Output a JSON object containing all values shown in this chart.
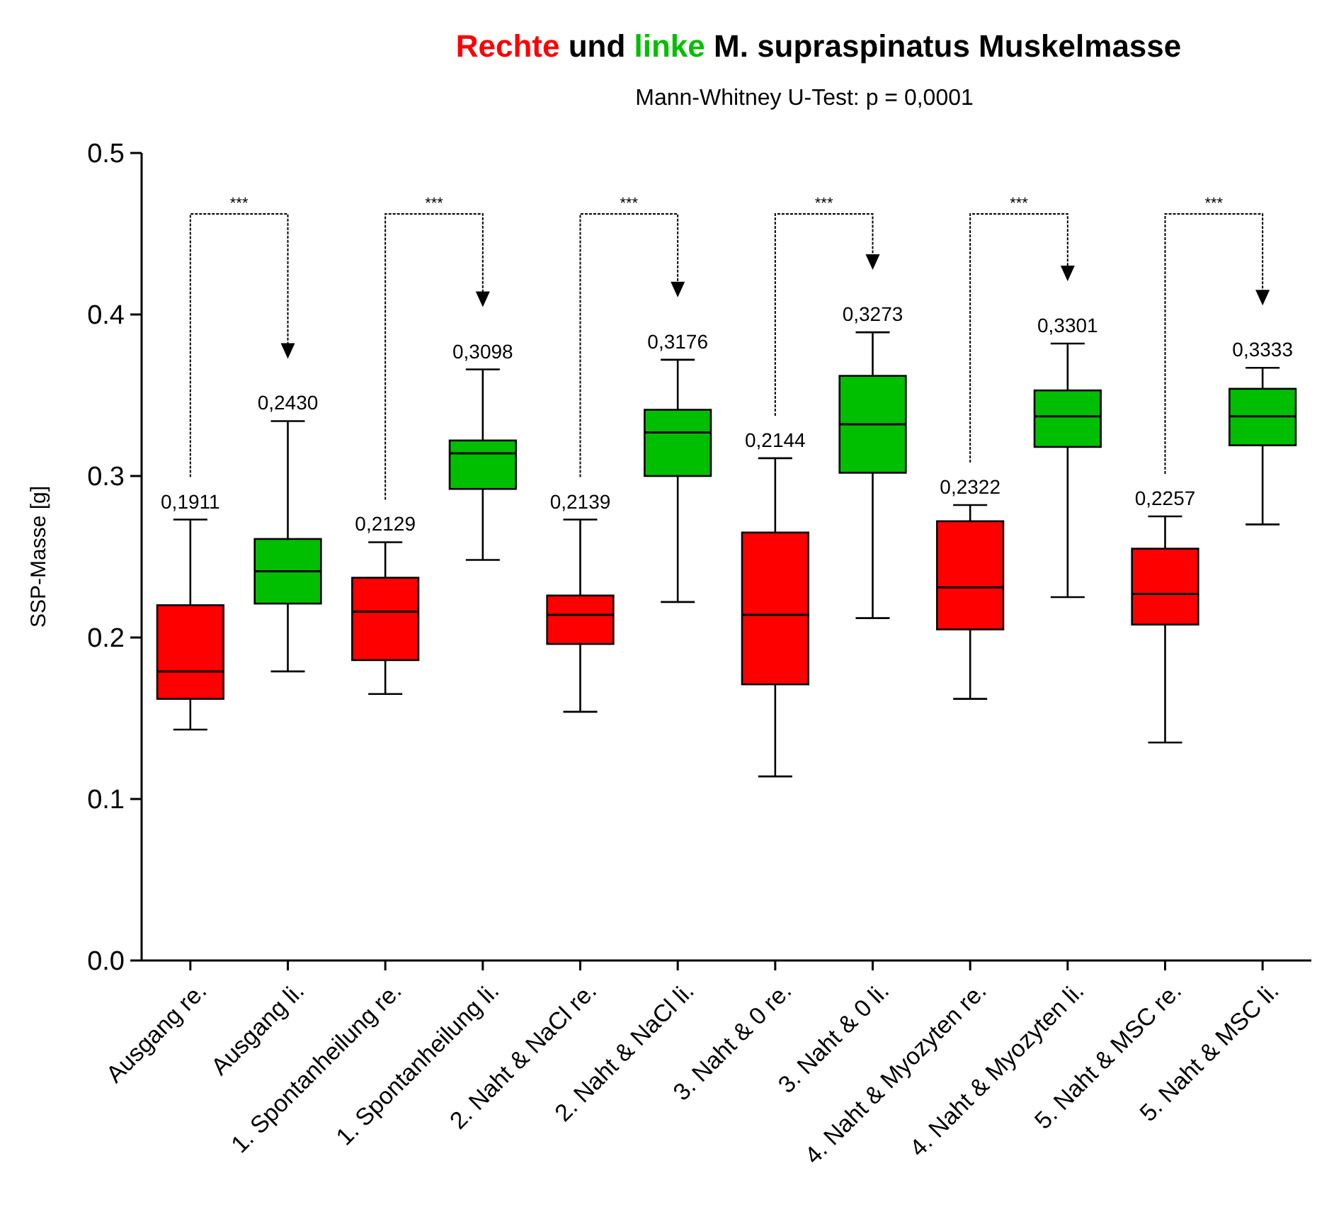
{
  "chart_data": {
    "type": "box",
    "title": "Rechte und linke M. supraspinatus Muskelmasse",
    "subtitle": "Mann-Whitney  U-Test: p = 0,0001",
    "ylabel": "SSP-Masse [g]",
    "categories": [
      "Ausgang re.",
      "Ausgang li.",
      "1. Spontanheilung re.",
      "1. Spontanheilung li.",
      "2. Naht & NaCl re.",
      "2. Naht & NaCl li.",
      "3. Naht & 0 re.",
      "3. Naht & 0 li.",
      "4. Naht & Myozyten re.",
      "4. Naht & Myozyten li.",
      "5. Naht & MSC re.",
      "5. Naht & MSC li."
    ],
    "colors": [
      "#ff0000",
      "#00bf00",
      "#ff0000",
      "#00bf00",
      "#ff0000",
      "#00bf00",
      "#ff0000",
      "#00bf00",
      "#ff0000",
      "#00bf00",
      "#ff0000",
      "#00bf00"
    ],
    "boxes": [
      {
        "low": 0.143,
        "q1": 0.162,
        "median": 0.179,
        "q3": 0.22,
        "high": 0.273
      },
      {
        "low": 0.179,
        "q1": 0.221,
        "median": 0.241,
        "q3": 0.261,
        "high": 0.334
      },
      {
        "low": 0.165,
        "q1": 0.186,
        "median": 0.216,
        "q3": 0.237,
        "high": 0.259
      },
      {
        "low": 0.248,
        "q1": 0.292,
        "median": 0.314,
        "q3": 0.322,
        "high": 0.366
      },
      {
        "low": 0.154,
        "q1": 0.196,
        "median": 0.214,
        "q3": 0.226,
        "high": 0.273
      },
      {
        "low": 0.222,
        "q1": 0.3,
        "median": 0.327,
        "q3": 0.341,
        "high": 0.372
      },
      {
        "low": 0.114,
        "q1": 0.171,
        "median": 0.214,
        "q3": 0.265,
        "high": 0.311
      },
      {
        "low": 0.212,
        "q1": 0.302,
        "median": 0.332,
        "q3": 0.362,
        "high": 0.389
      },
      {
        "low": 0.162,
        "q1": 0.205,
        "median": 0.231,
        "q3": 0.272,
        "high": 0.282
      },
      {
        "low": 0.225,
        "q1": 0.318,
        "median": 0.337,
        "q3": 0.353,
        "high": 0.382
      },
      {
        "low": 0.135,
        "q1": 0.208,
        "median": 0.227,
        "q3": 0.255,
        "high": 0.275
      },
      {
        "low": 0.27,
        "q1": 0.319,
        "median": 0.337,
        "q3": 0.354,
        "high": 0.367
      }
    ],
    "value_labels": [
      "0,1911",
      "0,2430",
      "0,2129",
      "0,3098",
      "0,2139",
      "0,3176",
      "0,2144",
      "0,3273",
      "0,2322",
      "0,3301",
      "0,2257",
      "0,3333"
    ],
    "annotations": [
      "***",
      "***",
      "***",
      "***",
      "***",
      "***"
    ],
    "ylim": [
      0,
      0.5
    ],
    "yticks": [
      {
        "value": 0,
        "label": "0.0"
      },
      0.1,
      0.2,
      0.3,
      0.4,
      0.5
    ],
    "grid": false
  }
}
